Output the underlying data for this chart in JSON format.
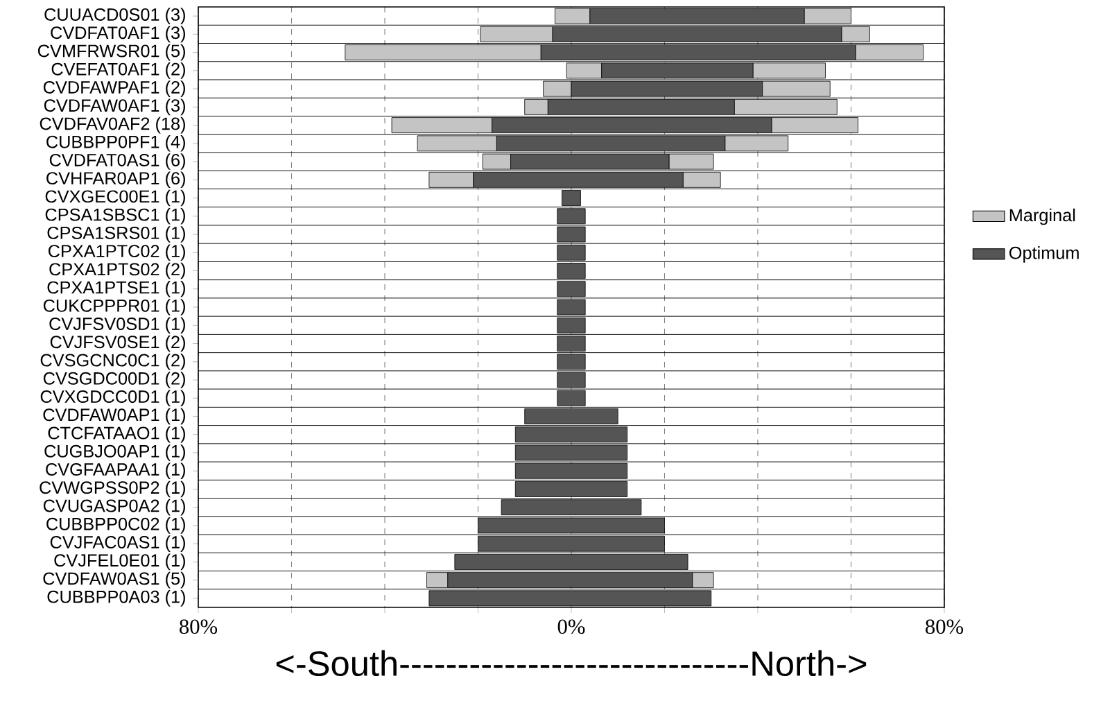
{
  "chart_data": {
    "type": "bar",
    "orientation": "horizontal",
    "categories": [
      "CUUACD0S01 (3)",
      "CVDFAT0AF1 (3)",
      "CVMFRWSR01 (5)",
      "CVEFAT0AF1 (2)",
      "CVDFAWPAF1 (2)",
      "CVDFAW0AF1 (3)",
      "CVDFAV0AF2 (18)",
      "CUBBPP0PF1 (4)",
      "CVDFAT0AS1 (6)",
      "CVHFAR0AP1 (6)",
      "CVXGEC00E1 (1)",
      "CPSA1SBSC1 (1)",
      "CPSA1SRS01 (1)",
      "CPXA1PTC02 (1)",
      "CPXA1PTS02 (2)",
      "CPXA1PTSE1 (1)",
      "CUKCPPPR01 (1)",
      "CVJFSV0SD1 (1)",
      "CVJFSV0SE1 (2)",
      "CVSGCNC0C1 (2)",
      "CVSGDC00D1 (2)",
      "CVXGDCC0D1 (1)",
      "CVDFAW0AP1 (1)",
      "CTCFATAAO1 (1)",
      "CUGBJO0AP1 (1)",
      "CVGFAAPAA1 (1)",
      "CVWGPSS0P2 (1)",
      "CVUGASP0A2 (1)",
      "CUBBPP0C02 (1)",
      "CVJFAC0AS1 (1)",
      "CVJFEL0E01 (1)",
      "CVDFAW0AS1 (5)",
      "CUBBPP0A03 (1)"
    ],
    "series": [
      {
        "name": "Marginal",
        "color": "#c4c4c4",
        "base": [
          -3.5,
          -19.5,
          -48.5,
          -1,
          -6,
          -10,
          -38.5,
          -33,
          -19,
          -30.5,
          null,
          null,
          null,
          null,
          null,
          null,
          null,
          null,
          null,
          null,
          null,
          null,
          null,
          null,
          null,
          null,
          null,
          null,
          null,
          null,
          null,
          -31,
          null
        ],
        "values": [
          7.5,
          15.5,
          42,
          7.5,
          6,
          5,
          21.5,
          17,
          6,
          9.5,
          null,
          null,
          null,
          null,
          null,
          null,
          null,
          null,
          null,
          null,
          null,
          null,
          null,
          null,
          null,
          null,
          null,
          null,
          null,
          null,
          null,
          4.5,
          null
        ]
      },
      {
        "name": "Optimum",
        "color": "#555555",
        "base": [
          4,
          -4,
          -6.5,
          6.5,
          0,
          -5,
          -17,
          -16,
          -13,
          -21,
          -2,
          -3,
          -3,
          -3,
          -3,
          -3,
          -3,
          -3,
          -3,
          -3,
          -3,
          -3,
          -10,
          -12,
          -12,
          -12,
          -12,
          -15,
          -20,
          -20,
          -25,
          -26.5,
          -30.5
        ],
        "values": [
          46,
          62,
          67.5,
          32.5,
          41,
          40,
          60,
          49,
          34,
          45,
          4,
          6,
          6,
          6,
          6,
          6,
          6,
          6,
          6,
          6,
          6,
          6,
          20,
          24,
          24,
          24,
          24,
          30,
          40,
          40,
          50,
          52.5,
          60.5
        ]
      },
      {
        "color": "#c4c4c4",
        "base": [
          50,
          58,
          61,
          39,
          41,
          35,
          43,
          33,
          21,
          24,
          null,
          null,
          null,
          null,
          null,
          null,
          null,
          null,
          null,
          null,
          null,
          null,
          null,
          null,
          null,
          null,
          null,
          null,
          null,
          null,
          null,
          26,
          null
        ],
        "values": [
          10,
          6,
          14.5,
          15.5,
          14.5,
          22,
          18.5,
          13.5,
          9.5,
          8,
          null,
          null,
          null,
          null,
          null,
          null,
          null,
          null,
          null,
          null,
          null,
          null,
          null,
          null,
          null,
          null,
          null,
          null,
          null,
          null,
          null,
          4.5,
          null
        ]
      }
    ],
    "xlim": [
      -80,
      80
    ],
    "xticks": [
      {
        "value": -80,
        "label": "80%"
      },
      {
        "value": -60,
        "label": null
      },
      {
        "value": -40,
        "label": null
      },
      {
        "value": -20,
        "label": null
      },
      {
        "value": 0,
        "label": "0%"
      },
      {
        "value": 20,
        "label": null
      },
      {
        "value": 40,
        "label": null
      },
      {
        "value": 60,
        "label": null
      },
      {
        "value": 80,
        "label": "80%"
      }
    ],
    "xlabel": "<-South------------------------------North->",
    "grid": true,
    "legend": "right"
  }
}
